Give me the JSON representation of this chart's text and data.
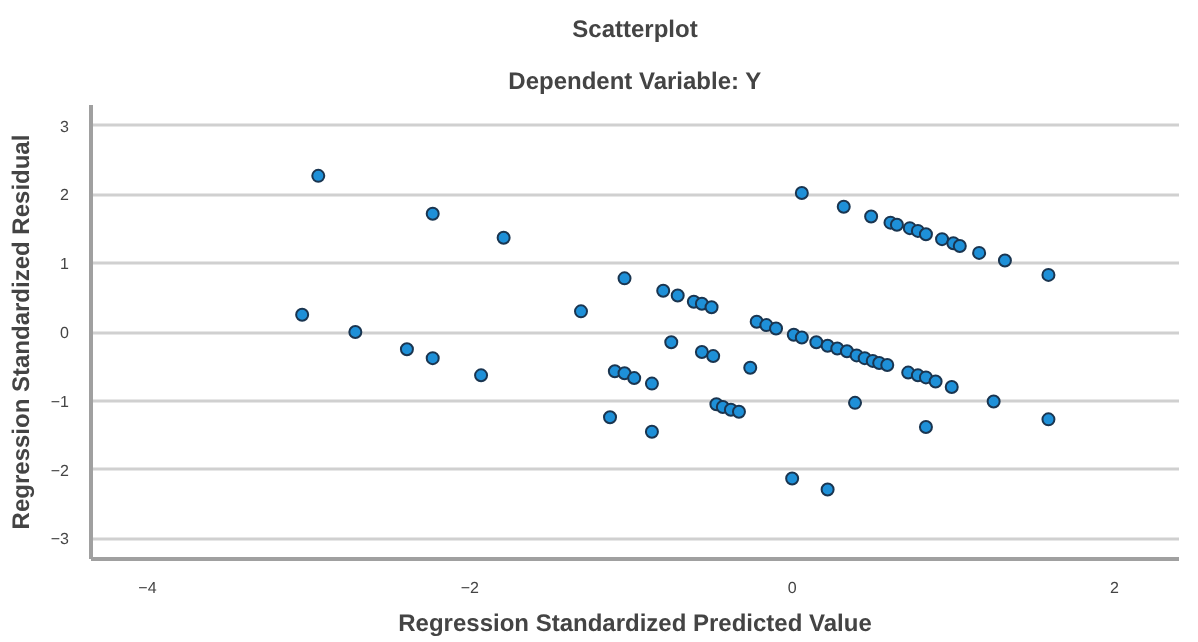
{
  "chart_data": {
    "type": "scatter",
    "title": "Scatterplot",
    "subtitle": "Dependent Variable: Y",
    "xlabel": "Regression Standardized Predicted Value",
    "ylabel": "Regression Standardized Residual",
    "x": [
      -2.94,
      -3.04,
      -2.71,
      -2.39,
      -2.23,
      -2.23,
      -1.93,
      -1.79,
      -1.31,
      -1.13,
      -1.1,
      -1.04,
      -1.04,
      -0.98,
      -0.87,
      -0.87,
      -0.8,
      -0.75,
      -0.71,
      -0.61,
      -0.56,
      -0.5,
      -0.56,
      -0.49,
      -0.47,
      -0.43,
      -0.38,
      -0.33,
      -0.26,
      -0.22,
      -0.16,
      -0.1,
      0.0,
      0.01,
      0.06,
      0.06,
      0.15,
      0.22,
      0.22,
      0.28,
      0.34,
      0.32,
      0.39,
      0.4,
      0.45,
      0.5,
      0.49,
      0.54,
      0.59,
      0.61,
      0.65,
      0.72,
      0.73,
      0.78,
      0.78,
      0.83,
      0.83,
      0.83,
      0.89,
      0.93,
      0.99,
      1.0,
      1.04,
      1.16,
      1.25,
      1.32,
      1.59,
      1.59
    ],
    "series": [
      {
        "color": "#1e90d8",
        "values": [
          2.27,
          0.25,
          0.0,
          -0.25,
          1.72,
          -0.38,
          -0.63,
          1.37,
          0.3,
          -1.24,
          -0.57,
          0.78,
          -0.6,
          -0.67,
          -0.75,
          -1.45,
          0.6,
          -0.15,
          0.53,
          0.44,
          0.41,
          0.36,
          -0.29,
          -0.35,
          -1.05,
          -1.09,
          -1.13,
          -1.16,
          -0.52,
          0.15,
          0.1,
          0.05,
          -2.13,
          -0.04,
          -0.08,
          2.02,
          -0.15,
          -0.2,
          -2.29,
          -0.24,
          -0.28,
          1.82,
          -1.03,
          -0.34,
          -0.38,
          -0.42,
          1.68,
          -0.45,
          -0.48,
          1.59,
          1.56,
          -0.59,
          1.51,
          -0.63,
          1.47,
          -0.66,
          1.42,
          -1.38,
          -0.72,
          1.35,
          -0.8,
          1.29,
          1.25,
          1.15,
          -1.01,
          1.04,
          0.83,
          -1.27
        ]
      }
    ],
    "xlim": [
      -4.35,
      2.4
    ],
    "ylim": [
      -3.3,
      3.3
    ],
    "xticks": [
      -4,
      -2,
      0,
      2
    ],
    "yticks": [
      -3,
      -2,
      -1,
      0,
      1,
      2,
      3
    ],
    "grid": "y",
    "marker": "circle"
  }
}
